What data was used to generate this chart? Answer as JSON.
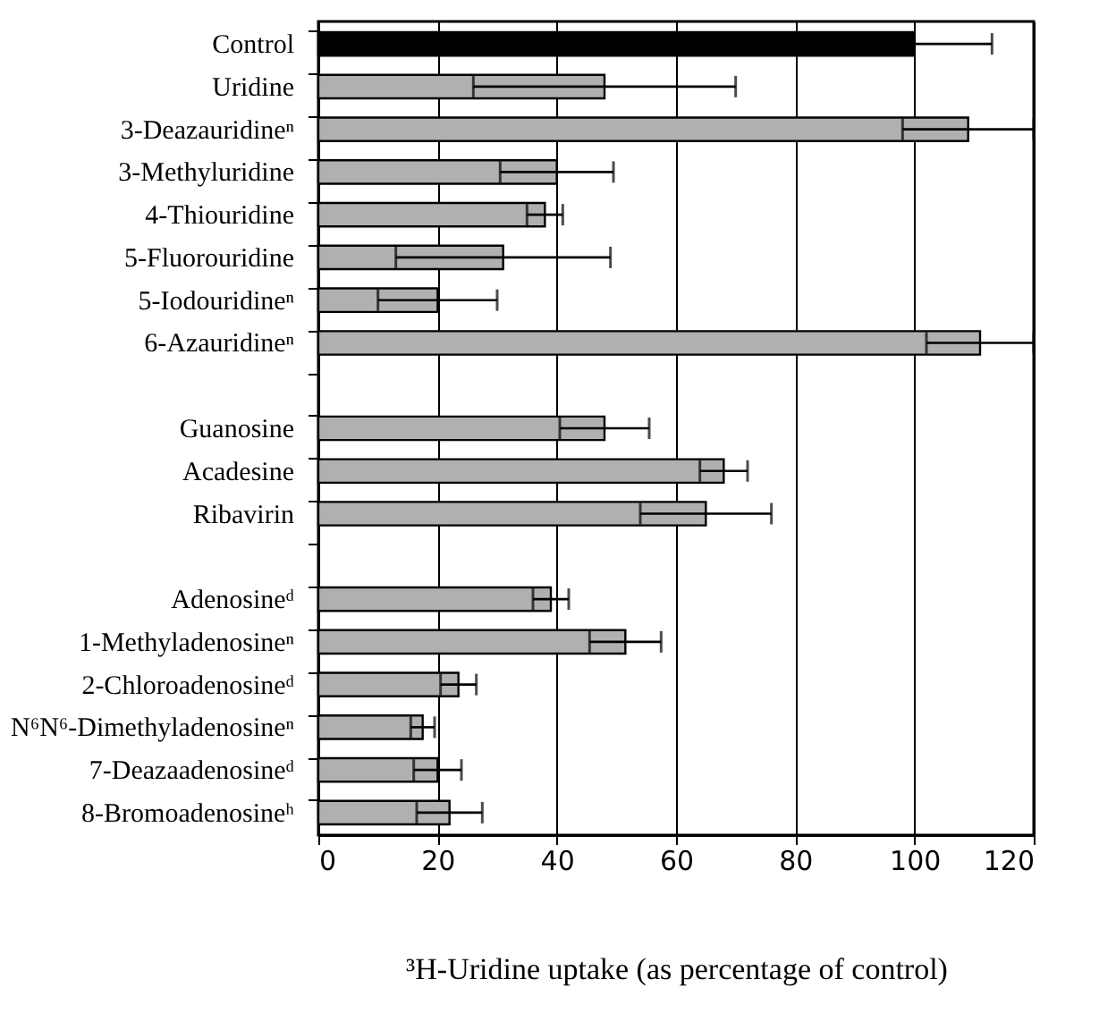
{
  "chart_data": {
    "type": "bar",
    "orientation": "horizontal",
    "xlabel": "³H-Uridine uptake (as percentage of control)",
    "categories": [
      "Control",
      "Uridine",
      "3-Deazauridineⁿ",
      "3-Methyluridine",
      "4-Thiouridine",
      "5-Fluorouridine",
      "5-Iodouridineⁿ",
      "6-Azauridineⁿ",
      null,
      "Guanosine",
      "Acadesine",
      "Ribavirin",
      null,
      "Adenosineᵈ",
      "1-Methyladenosineⁿ",
      "2-Chloroadenosineᵈ",
      "N⁶N⁶-Dimethyladenosineⁿ",
      "7-Deazaadenosineᵈ",
      "8-Bromoadenosineʰ"
    ],
    "values": [
      100,
      48,
      109,
      40,
      38,
      31,
      20,
      111,
      null,
      48,
      68,
      65,
      null,
      39,
      51.5,
      23.5,
      17.5,
      20,
      22
    ],
    "errors": [
      13,
      22,
      11,
      9.5,
      3,
      18,
      10,
      9,
      null,
      7.5,
      4,
      11,
      null,
      3,
      6,
      3,
      2,
      4,
      5.5
    ],
    "colors": [
      "#000000",
      "#b0b0b0",
      "#b0b0b0",
      "#b0b0b0",
      "#b0b0b0",
      "#b0b0b0",
      "#b0b0b0",
      "#b0b0b0",
      "#b0b0b0",
      "#b0b0b0",
      "#b0b0b0",
      "#b0b0b0",
      "#b0b0b0",
      "#b0b0b0",
      "#b0b0b0",
      "#b0b0b0",
      "#b0b0b0",
      "#b0b0b0",
      "#b0b0b0"
    ],
    "xlim": [
      0,
      120
    ],
    "xticks": [
      0,
      20,
      40,
      60,
      80,
      100,
      120
    ],
    "grid": "x",
    "legend": false
  }
}
